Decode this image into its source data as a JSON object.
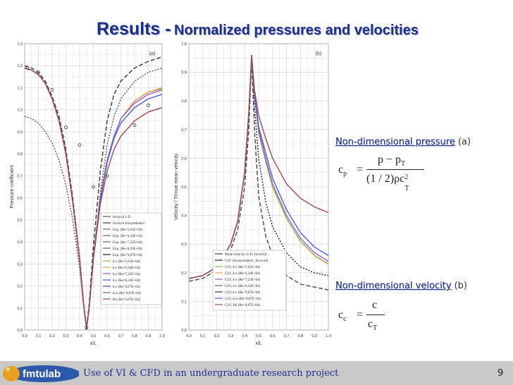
{
  "slide": {
    "title_main": "Results -",
    "title_sub": "Normalized pressures and velocities",
    "footer_text": "Use of VI & CFD in an undergraduate research project",
    "page_number": "9",
    "logo_text": "fmtulab"
  },
  "pressure_block": {
    "label": "Non-dimensional pressure",
    "tag": "(a)",
    "formula": {
      "lhs_symbol": "c",
      "lhs_sub": "p",
      "eq": "=",
      "numerator": "p − p",
      "numerator_sub": "T",
      "denominator": "(1 / 2)ρc",
      "denominator_sub": "T",
      "denominator_sup": "2"
    }
  },
  "velocity_block": {
    "label": "Non-dimensional velocity",
    "tag": "(b)",
    "formula": {
      "lhs_symbol": "c",
      "lhs_sub": "c",
      "eq": "=",
      "numerator": "c",
      "denominator": "c",
      "denominator_sub": "T"
    }
  },
  "chart_data": [
    {
      "type": "line",
      "panel_label": "(a)",
      "xlabel": "x/L",
      "ylabel": "Pressure coefficient",
      "xlim": [
        0.0,
        1.0
      ],
      "ylim": [
        0.0,
        1.3
      ],
      "x_ticks": [
        "0,0",
        "0,1",
        "0,2",
        "0,3",
        "0,4",
        "0,5",
        "0,6",
        "0,7",
        "0,8",
        "0,9",
        "1,0"
      ],
      "y_ticks": [
        "0,0",
        "0,1",
        "0,2",
        "0,3",
        "0,4",
        "0,5",
        "0,6",
        "0,7",
        "0,8",
        "0,9",
        "1,0",
        "1,1",
        "1,2",
        "1,3"
      ],
      "grid": true,
      "legend_position": "bottom-right",
      "legend": [
        "Inviscid 1-D",
        "Inviscid Axisymmetric",
        "Exp. (Re=5,61E+04)",
        "Exp. (Re=6,34E+04)",
        "Exp. (Re=7,23E+04)",
        "Exp. (Re=8,32E+04)",
        "Exp. (Re=9,87E+04)",
        "k-ε (Re=5,61E+04)",
        "k-ε (Re=6,34E+04)",
        "k-ε (Re=7,23E+04)",
        "k-ε (Re=8,32E+04)",
        "k-ε (Re=9,87E+04)",
        "k-ω (Re=9,87E+04)",
        "RS (Re=9,87E+04)"
      ],
      "series": [
        {
          "name": "Inviscid 1-D",
          "color": "#555555",
          "dash": "2,2",
          "x": [
            0,
            0.05,
            0.1,
            0.15,
            0.2,
            0.25,
            0.3,
            0.35,
            0.4,
            0.43,
            0.45,
            0.47,
            0.5,
            0.55,
            0.6,
            0.65,
            0.7,
            0.8,
            0.9,
            1.0
          ],
          "y": [
            0.97,
            0.96,
            0.94,
            0.9,
            0.85,
            0.77,
            0.66,
            0.5,
            0.28,
            0.1,
            0.0,
            0.1,
            0.32,
            0.62,
            0.84,
            0.97,
            1.05,
            1.13,
            1.17,
            1.19
          ]
        },
        {
          "name": "Inviscid Axisymmetric",
          "color": "#333333",
          "dash": "6,3",
          "x": [
            0,
            0.05,
            0.1,
            0.15,
            0.2,
            0.25,
            0.3,
            0.35,
            0.4,
            0.43,
            0.45,
            0.47,
            0.5,
            0.55,
            0.6,
            0.65,
            0.7,
            0.8,
            0.9,
            1.0
          ],
          "y": [
            1.2,
            1.19,
            1.17,
            1.13,
            1.06,
            0.97,
            0.82,
            0.6,
            0.33,
            0.12,
            0.01,
            0.12,
            0.38,
            0.72,
            0.95,
            1.07,
            1.13,
            1.19,
            1.22,
            1.24
          ]
        },
        {
          "name": "k-ε (Re=5,61E+04)",
          "color": "#9aa54a",
          "dash": "",
          "x": [
            0,
            0.05,
            0.1,
            0.15,
            0.2,
            0.25,
            0.3,
            0.35,
            0.4,
            0.43,
            0.45,
            0.47,
            0.5,
            0.55,
            0.6,
            0.65,
            0.7,
            0.8,
            0.9,
            1.0
          ],
          "y": [
            1.19,
            1.18,
            1.16,
            1.12,
            1.05,
            0.95,
            0.8,
            0.58,
            0.32,
            0.11,
            0.01,
            0.1,
            0.33,
            0.6,
            0.77,
            0.88,
            0.96,
            1.04,
            1.08,
            1.1
          ]
        },
        {
          "name": "k-ε (Re=6,34E+04)",
          "color": "#e0a050",
          "dash": "",
          "x": [
            0,
            0.05,
            0.1,
            0.15,
            0.2,
            0.25,
            0.3,
            0.35,
            0.4,
            0.43,
            0.45,
            0.47,
            0.5,
            0.55,
            0.6,
            0.65,
            0.7,
            0.8,
            0.9,
            1.0
          ],
          "y": [
            1.19,
            1.18,
            1.16,
            1.12,
            1.05,
            0.95,
            0.8,
            0.58,
            0.32,
            0.11,
            0.01,
            0.1,
            0.33,
            0.6,
            0.77,
            0.88,
            0.96,
            1.04,
            1.08,
            1.095
          ]
        },
        {
          "name": "k-ε (Re=7,23E+04)",
          "color": "#9a5fc0",
          "dash": "",
          "x": [
            0,
            0.05,
            0.1,
            0.15,
            0.2,
            0.25,
            0.3,
            0.35,
            0.4,
            0.43,
            0.45,
            0.47,
            0.5,
            0.55,
            0.6,
            0.65,
            0.7,
            0.8,
            0.9,
            1.0
          ],
          "y": [
            1.19,
            1.18,
            1.16,
            1.12,
            1.05,
            0.95,
            0.8,
            0.58,
            0.32,
            0.11,
            0.01,
            0.1,
            0.33,
            0.6,
            0.77,
            0.88,
            0.96,
            1.03,
            1.07,
            1.09
          ]
        },
        {
          "name": "k-ε (Re=9,87E+04)",
          "color": "#4a5fd8",
          "dash": "",
          "x": [
            0,
            0.05,
            0.1,
            0.15,
            0.2,
            0.25,
            0.3,
            0.35,
            0.4,
            0.43,
            0.45,
            0.47,
            0.5,
            0.55,
            0.6,
            0.65,
            0.7,
            0.8,
            0.9,
            1.0
          ],
          "y": [
            1.19,
            1.18,
            1.16,
            1.12,
            1.05,
            0.95,
            0.8,
            0.58,
            0.32,
            0.11,
            0.01,
            0.1,
            0.33,
            0.59,
            0.76,
            0.87,
            0.94,
            1.01,
            1.05,
            1.07
          ]
        },
        {
          "name": "RS (Re=9,87E+04)",
          "color": "#a04a4a",
          "dash": "",
          "x": [
            0,
            0.05,
            0.1,
            0.15,
            0.2,
            0.25,
            0.3,
            0.35,
            0.4,
            0.43,
            0.45,
            0.47,
            0.5,
            0.55,
            0.6,
            0.65,
            0.7,
            0.8,
            0.9,
            1.0
          ],
          "y": [
            1.19,
            1.18,
            1.16,
            1.12,
            1.05,
            0.95,
            0.8,
            0.58,
            0.32,
            0.11,
            0.01,
            0.1,
            0.32,
            0.57,
            0.72,
            0.82,
            0.88,
            0.95,
            0.99,
            1.01
          ]
        }
      ],
      "experimental": {
        "name": "Exp.",
        "x": [
          0.02,
          0.1,
          0.2,
          0.3,
          0.4,
          0.45,
          0.5,
          0.6,
          0.8,
          0.9
        ],
        "y": [
          1.19,
          1.17,
          1.09,
          0.92,
          0.84,
          0.01,
          0.65,
          0.7,
          0.93,
          1.02
        ]
      }
    },
    {
      "type": "line",
      "panel_label": "(b)",
      "xlabel": "x/L",
      "ylabel": "Velocity / Throat mean velocity",
      "xlim": [
        0.0,
        1.0
      ],
      "ylim": [
        0.0,
        1.0
      ],
      "x_ticks": [
        "0,0",
        "0,1",
        "0,2",
        "0,3",
        "0,4",
        "0,5",
        "0,6",
        "0,7",
        "0,8",
        "0,9",
        "1,0"
      ],
      "y_ticks": [
        "0,0",
        "0,1",
        "0,2",
        "0,3",
        "0,4",
        "0,5",
        "0,6",
        "0,7",
        "0,8",
        "0,9",
        "1,0"
      ],
      "grid": true,
      "legend_position": "bottom-left",
      "legend": [
        "Mean velocity (1-D, Inviscid)",
        "CLV (Axisymmetric, Inviscid)",
        "CLV, k-ε (Re=5,61E+04)",
        "CLV, k-ε (Re=6,34E+04)",
        "CLV, k-ε (Re=7,23E+04)",
        "CLV, k-ε (Re=8,32E+04)",
        "CLV, k-ε (Re=9,87E+04)",
        "CLV, k-ω (Re=9,87E+04)",
        "CLV, RS (Re=9,87E+04)"
      ],
      "series": [
        {
          "name": "Mean velocity (1-D, Inviscid)",
          "color": "#444444",
          "dash": "6,3",
          "x": [
            0,
            0.1,
            0.2,
            0.3,
            0.35,
            0.4,
            0.43,
            0.45,
            0.47,
            0.5,
            0.55,
            0.6,
            0.7,
            0.8,
            0.9,
            1.0
          ],
          "y": [
            0.17,
            0.18,
            0.21,
            0.28,
            0.35,
            0.5,
            0.7,
            0.95,
            0.7,
            0.47,
            0.33,
            0.26,
            0.19,
            0.16,
            0.15,
            0.14
          ]
        },
        {
          "name": "CLV (Axisymmetric, Inviscid)",
          "color": "#222222",
          "dash": "2,2",
          "x": [
            0,
            0.1,
            0.2,
            0.3,
            0.35,
            0.4,
            0.43,
            0.45,
            0.47,
            0.5,
            0.55,
            0.6,
            0.7,
            0.8,
            0.9,
            1.0
          ],
          "y": [
            0.18,
            0.19,
            0.22,
            0.3,
            0.38,
            0.55,
            0.76,
            0.96,
            0.78,
            0.6,
            0.45,
            0.36,
            0.27,
            0.22,
            0.2,
            0.19
          ]
        },
        {
          "name": "CLV, k-ε (Re=5,61E+04)",
          "color": "#9aa54a",
          "dash": "",
          "x": [
            0,
            0.1,
            0.2,
            0.3,
            0.35,
            0.4,
            0.43,
            0.45,
            0.47,
            0.5,
            0.55,
            0.6,
            0.7,
            0.8,
            0.9,
            1.0
          ],
          "y": [
            0.18,
            0.19,
            0.22,
            0.3,
            0.38,
            0.55,
            0.76,
            0.96,
            0.82,
            0.69,
            0.59,
            0.5,
            0.39,
            0.31,
            0.26,
            0.23
          ]
        },
        {
          "name": "CLV, k-ε (Re=7,23E+04)",
          "color": "#9a5fc0",
          "dash": "",
          "x": [
            0,
            0.1,
            0.2,
            0.3,
            0.35,
            0.4,
            0.43,
            0.45,
            0.47,
            0.5,
            0.55,
            0.6,
            0.7,
            0.8,
            0.9,
            1.0
          ],
          "y": [
            0.18,
            0.19,
            0.22,
            0.3,
            0.38,
            0.55,
            0.76,
            0.96,
            0.82,
            0.7,
            0.6,
            0.51,
            0.4,
            0.32,
            0.27,
            0.24
          ]
        },
        {
          "name": "CLV, k-ε (Re=9,87E+04)",
          "color": "#4a5fd8",
          "dash": "",
          "x": [
            0,
            0.1,
            0.2,
            0.3,
            0.35,
            0.4,
            0.43,
            0.45,
            0.47,
            0.5,
            0.55,
            0.6,
            0.7,
            0.8,
            0.9,
            1.0
          ],
          "y": [
            0.18,
            0.19,
            0.22,
            0.3,
            0.38,
            0.55,
            0.76,
            0.96,
            0.83,
            0.71,
            0.62,
            0.53,
            0.42,
            0.34,
            0.29,
            0.26
          ]
        },
        {
          "name": "CLV, RS (Re=9,87E+04)",
          "color": "#a04a4a",
          "dash": "",
          "x": [
            0,
            0.1,
            0.2,
            0.3,
            0.35,
            0.4,
            0.43,
            0.45,
            0.47,
            0.5,
            0.55,
            0.6,
            0.7,
            0.8,
            0.9,
            1.0
          ],
          "y": [
            0.18,
            0.19,
            0.22,
            0.3,
            0.38,
            0.55,
            0.76,
            0.96,
            0.84,
            0.75,
            0.67,
            0.6,
            0.51,
            0.46,
            0.43,
            0.41
          ]
        }
      ]
    }
  ]
}
